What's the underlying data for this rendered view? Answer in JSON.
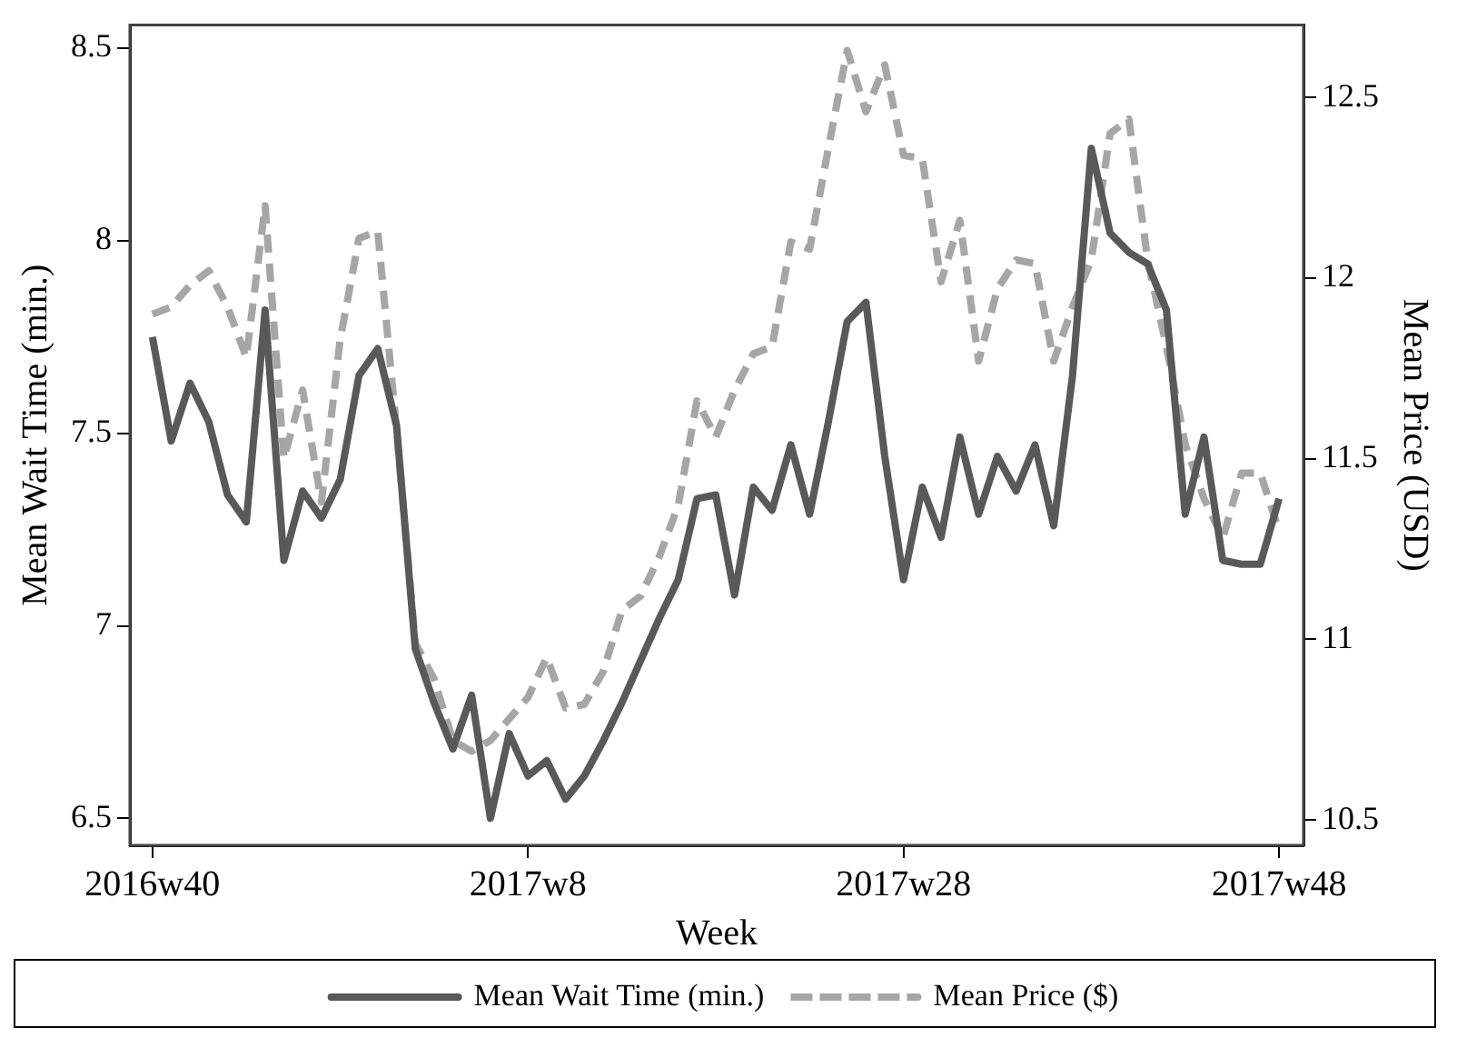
{
  "chart_data": {
    "type": "line",
    "xlabel": "Week",
    "ylabel": "Mean Wait Time (min.)",
    "y2label": "Mean Price (USD)",
    "categories": [
      "2016w40",
      null,
      null,
      null,
      null,
      null,
      null,
      null,
      null,
      null,
      null,
      null,
      null,
      null,
      null,
      null,
      null,
      null,
      null,
      null,
      "2017w8",
      null,
      null,
      null,
      null,
      null,
      null,
      null,
      null,
      null,
      null,
      null,
      null,
      null,
      null,
      null,
      null,
      null,
      null,
      null,
      "2017w28",
      null,
      null,
      null,
      null,
      null,
      null,
      null,
      null,
      null,
      null,
      null,
      null,
      null,
      null,
      null,
      null,
      null,
      null,
      null,
      "2017w48"
    ],
    "ylim": [
      6.43,
      8.56
    ],
    "yticks": [
      6.5,
      7,
      7.5,
      8,
      8.5
    ],
    "y2lim": [
      10.43,
      12.7
    ],
    "y2ticks": [
      10.5,
      11,
      11.5,
      12,
      12.5
    ],
    "legend": "bottom",
    "grid": false,
    "marker": "none",
    "series": [
      {
        "name": "Mean Wait Time (min.)",
        "color": "#595959",
        "line_style": "solid",
        "values": [
          7.75,
          7.48,
          7.63,
          7.53,
          7.34,
          7.27,
          7.82,
          7.17,
          7.35,
          7.28,
          7.38,
          7.65,
          7.72,
          7.52,
          6.94,
          6.8,
          6.68,
          6.82,
          6.5,
          6.72,
          6.61,
          6.65,
          6.55,
          6.61,
          6.7,
          6.8,
          6.91,
          7.02,
          7.12,
          7.33,
          7.34,
          7.08,
          7.36,
          7.3,
          7.47,
          7.29,
          7.53,
          7.79,
          7.84,
          7.44,
          7.12,
          7.36,
          7.23,
          7.49,
          7.29,
          7.44,
          7.35,
          7.47,
          7.26,
          7.65,
          8.24,
          8.02,
          7.97,
          7.94,
          7.82,
          7.29,
          7.49,
          7.17,
          7.16,
          7.16,
          7.33
        ]
      },
      {
        "name": "Mean Price ($)",
        "color": "#a6a6a6",
        "line_style": "dashed",
        "axis": "y2",
        "values": [
          11.9,
          11.92,
          11.98,
          12.02,
          11.92,
          11.78,
          12.2,
          11.5,
          11.69,
          11.38,
          11.83,
          12.11,
          12.13,
          11.58,
          10.99,
          10.89,
          10.72,
          10.69,
          10.72,
          10.78,
          10.84,
          10.95,
          10.81,
          10.82,
          10.91,
          11.08,
          11.12,
          11.23,
          11.37,
          11.66,
          11.56,
          11.69,
          11.79,
          11.81,
          12.1,
          12.08,
          12.36,
          12.63,
          12.46,
          12.59,
          12.34,
          12.33,
          11.99,
          12.16,
          11.77,
          11.97,
          12.05,
          12.04,
          11.77,
          11.92,
          12.05,
          12.4,
          12.44,
          12.05,
          11.81,
          11.54,
          11.39,
          11.28,
          11.46,
          11.46,
          11.3
        ]
      }
    ]
  }
}
